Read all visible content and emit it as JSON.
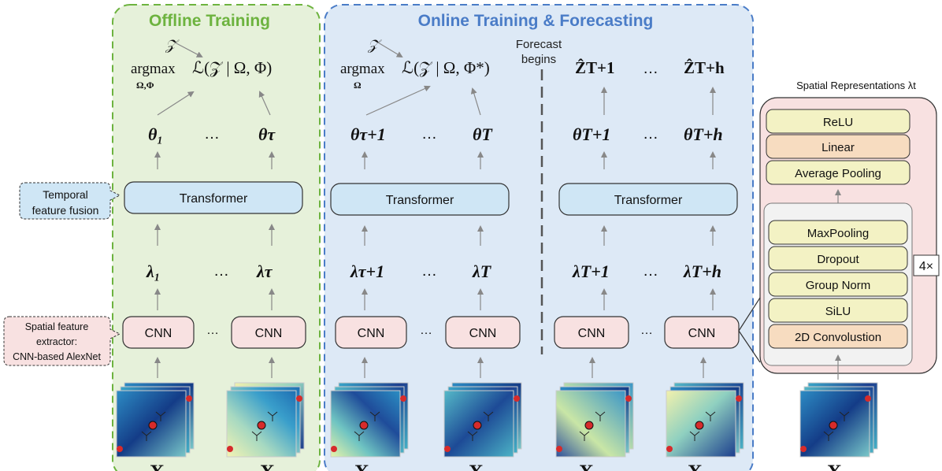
{
  "sections": {
    "offline": {
      "title": "Offline Training",
      "color": "#6db33f"
    },
    "online": {
      "title": "Online Training & Forecasting",
      "color": "#4a7cc7"
    }
  },
  "callouts": {
    "temporal": [
      "Temporal",
      "feature fusion"
    ],
    "spatial": [
      "Spatial feature",
      "extractor:",
      "CNN-based AlexNet"
    ]
  },
  "forecast_label": [
    "Forecast",
    "begins"
  ],
  "equations": {
    "offline": {
      "top": "𝒵",
      "op": "argmax",
      "sub": "Ω,Φ",
      "expr": "ℒ(𝒵 | Ω, Φ)"
    },
    "online": {
      "top": "𝒵",
      "op": "argmax",
      "sub": "Ω",
      "expr": "ℒ(𝒵 | Ω, Φ*)"
    }
  },
  "blocks": {
    "transformer": "Transformer",
    "cnn": "CNN",
    "ellipsis": "…"
  },
  "theta": {
    "g1": [
      "θ₁",
      "θτ"
    ],
    "g2": [
      "θτ+1",
      "θT"
    ],
    "g3": [
      "θT+1",
      "θT+h"
    ]
  },
  "lambda": {
    "g1": [
      "λ₁",
      "λτ"
    ],
    "g2": [
      "λτ+1",
      "λT"
    ],
    "g3": [
      "λT+1",
      "λT+h"
    ]
  },
  "outputs": {
    "g3": [
      "ẐT+1",
      "ẐT+h"
    ]
  },
  "x_label": "X",
  "spatial_panel": {
    "title": "Spatial Representations λt",
    "top_layers": [
      {
        "label": "ReLU",
        "color": "#f3f2c4"
      },
      {
        "label": "Linear",
        "color": "#f7dcc0"
      },
      {
        "label": "Average Pooling",
        "color": "#f3f2c4"
      }
    ],
    "repeat_layers": [
      {
        "label": "MaxPooling",
        "color": "#f3f2c4"
      },
      {
        "label": "Dropout",
        "color": "#f3f2c4"
      },
      {
        "label": "Group Norm",
        "color": "#f3f2c4"
      },
      {
        "label": "SiLU",
        "color": "#f3f2c4"
      },
      {
        "label": "2D Convolustion",
        "color": "#f7dcc0"
      }
    ],
    "repeat_badge": "4×"
  },
  "colors": {
    "offline_bg": "#e6f1da",
    "online_bg": "#dde9f6",
    "transformer_fill": "#cfe6f5",
    "cnn_fill": "#f8e1e1",
    "panel_fill": "#f8e1e1",
    "arrow": "#888888"
  },
  "icons": [
    "heatmap-icon",
    "star-icon",
    "arrow-icon"
  ]
}
